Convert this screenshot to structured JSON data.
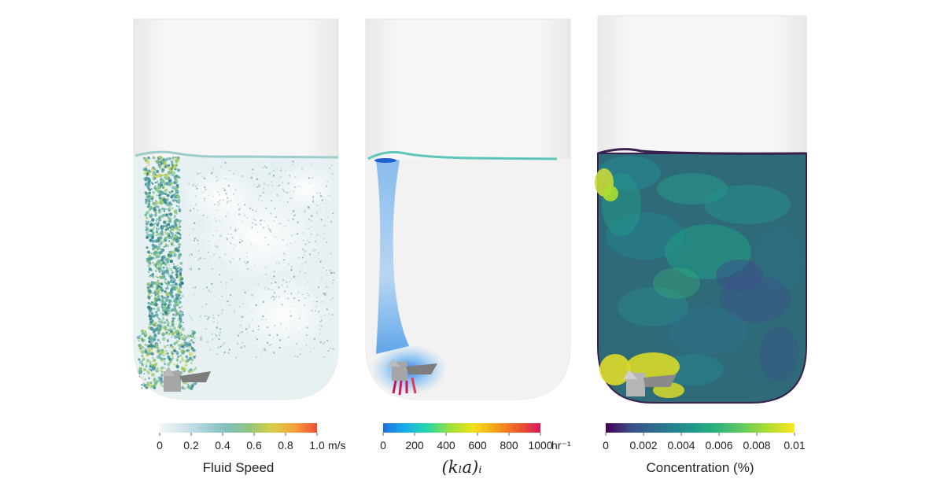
{
  "panels": [
    {
      "id": "fluid-speed",
      "colorbar": {
        "title": "Fluid Speed",
        "unit": "m/s",
        "ticks": [
          "0",
          "0.2",
          "0.4",
          "0.6",
          "0.8",
          "1.0"
        ],
        "range": [
          0,
          1.0
        ],
        "colors": [
          "#f4f7f9",
          "#d2e6ec",
          "#a9d0da",
          "#7fbfbc",
          "#93c47d",
          "#d6d046",
          "#f5a13a",
          "#ef4d34"
        ]
      }
    },
    {
      "id": "kla",
      "colorbar": {
        "title": "(k_l a)_i",
        "title_math": "(kₗa)ᵢ",
        "unit": "hr⁻¹",
        "ticks": [
          "0",
          "200",
          "400",
          "600",
          "800",
          "1000"
        ],
        "range": [
          0,
          1000
        ],
        "colors": [
          "#1f6fe0",
          "#17b0e6",
          "#2bd6a6",
          "#9be23a",
          "#f2e21a",
          "#f5a21c",
          "#ee5a2a",
          "#d9165c"
        ]
      }
    },
    {
      "id": "concentration",
      "colorbar": {
        "title": "Concentration (%)",
        "unit": "",
        "ticks": [
          "0",
          "0.002",
          "0.004",
          "0.006",
          "0.008",
          "0.01"
        ],
        "range": [
          0,
          0.01
        ],
        "colors": [
          "#440154",
          "#3b528b",
          "#2c728e",
          "#21918c",
          "#28ae80",
          "#5ec962",
          "#addc30",
          "#fde725"
        ]
      }
    }
  ],
  "colors": {
    "headspace": "#f0f0f0",
    "tank_outline": "#e6e6e6",
    "liquid_light": "#f4f7f9",
    "concentration_base": "#2f6a78",
    "concentration_outline": "#3a1f4f",
    "impeller_gray": "#9a9a9a"
  }
}
